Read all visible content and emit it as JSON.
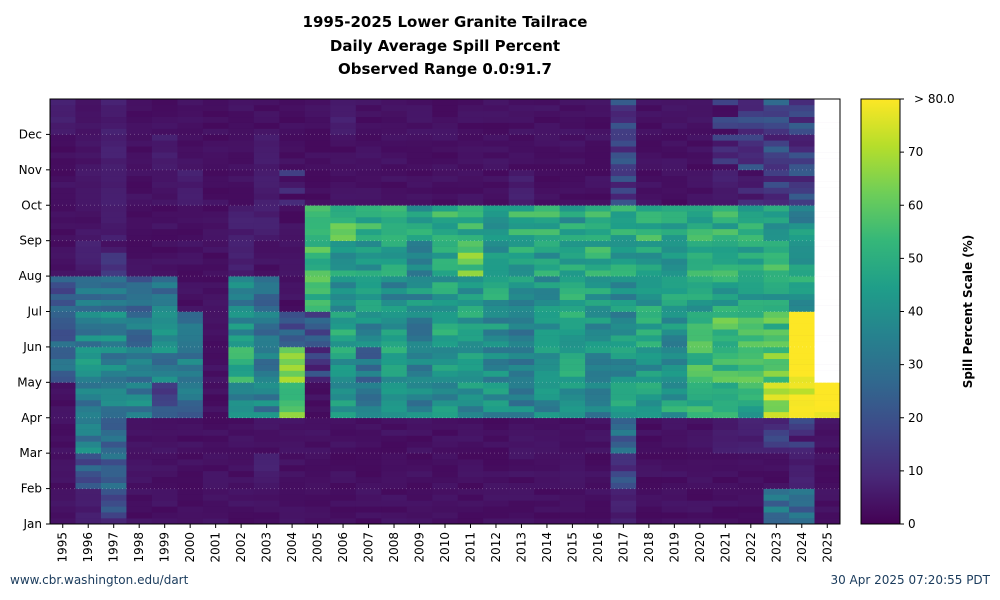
{
  "title_lines": [
    "1995-2025 Lower Granite Tailrace",
    "Daily Average Spill Percent",
    "Observed Range 0.0:91.7"
  ],
  "footer": {
    "left": "www.cbr.washington.edu/dart",
    "right": "30 Apr 2025 07:20:55 PDT"
  },
  "chart_data": {
    "type": "heatmap",
    "title": "1995-2025 Lower Granite Tailrace Daily Average Spill Percent",
    "subtitle": "Observed Range 0.0:91.7",
    "x_categories": [
      "1995",
      "1996",
      "1997",
      "1998",
      "1999",
      "2000",
      "2001",
      "2002",
      "2003",
      "2004",
      "2005",
      "2006",
      "2007",
      "2008",
      "2009",
      "2010",
      "2011",
      "2012",
      "2013",
      "2014",
      "2015",
      "2016",
      "2017",
      "2018",
      "2019",
      "2020",
      "2021",
      "2022",
      "2023",
      "2024",
      "2025"
    ],
    "y_tick_labels": [
      "Jan",
      "Feb",
      "Mar",
      "Apr",
      "May",
      "Jun",
      "Jul",
      "Aug",
      "Sep",
      "Oct",
      "Nov",
      "Dec"
    ],
    "colorbar": {
      "label": "Spill Percent Scale (%)",
      "ticks": [
        0,
        10,
        20,
        30,
        40,
        50,
        60,
        70
      ],
      "top_label": "> 80.0",
      "range": [
        0,
        80
      ]
    },
    "colormap": "viridis",
    "observed_range": [
      0.0,
      91.7
    ],
    "approx_avg_spill_by_year_month": {
      "1995": [
        2,
        2,
        2,
        2,
        25,
        25,
        20,
        2,
        2,
        2,
        2,
        5
      ],
      "1996": [
        5,
        20,
        35,
        30,
        40,
        35,
        30,
        5,
        3,
        3,
        3,
        3
      ],
      "1997": [
        15,
        25,
        30,
        35,
        35,
        35,
        30,
        10,
        5,
        5,
        5,
        5
      ],
      "1998": [
        2,
        2,
        2,
        35,
        30,
        30,
        25,
        2,
        2,
        2,
        2,
        2
      ],
      "1999": [
        2,
        2,
        2,
        20,
        35,
        35,
        30,
        2,
        2,
        2,
        5,
        2
      ],
      "2000": [
        2,
        2,
        2,
        30,
        35,
        35,
        2,
        2,
        2,
        5,
        2,
        2
      ],
      "2001": [
        2,
        2,
        2,
        2,
        2,
        2,
        2,
        2,
        2,
        2,
        2,
        2
      ],
      "2002": [
        2,
        2,
        2,
        40,
        50,
        40,
        35,
        5,
        5,
        2,
        2,
        2
      ],
      "2003": [
        2,
        5,
        2,
        35,
        30,
        30,
        25,
        2,
        5,
        5,
        5,
        2
      ],
      "2004": [
        2,
        2,
        2,
        60,
        65,
        20,
        2,
        2,
        2,
        10,
        2,
        2
      ],
      "2005": [
        2,
        2,
        2,
        2,
        15,
        20,
        55,
        55,
        50,
        2,
        2,
        2
      ],
      "2006": [
        2,
        2,
        2,
        40,
        45,
        45,
        40,
        45,
        55,
        2,
        2,
        5
      ],
      "2007": [
        2,
        2,
        2,
        35,
        30,
        35,
        40,
        45,
        50,
        2,
        2,
        2
      ],
      "2008": [
        2,
        2,
        2,
        40,
        45,
        45,
        40,
        45,
        50,
        2,
        2,
        2
      ],
      "2009": [
        2,
        2,
        2,
        35,
        35,
        35,
        40,
        40,
        45,
        2,
        2,
        2
      ],
      "2010": [
        2,
        2,
        2,
        40,
        40,
        45,
        45,
        45,
        50,
        2,
        2,
        2
      ],
      "2011": [
        2,
        2,
        2,
        40,
        45,
        45,
        45,
        60,
        50,
        2,
        2,
        2
      ],
      "2012": [
        2,
        2,
        2,
        40,
        40,
        40,
        45,
        45,
        45,
        2,
        2,
        2
      ],
      "2013": [
        2,
        2,
        2,
        35,
        35,
        35,
        40,
        45,
        50,
        5,
        2,
        2
      ],
      "2014": [
        2,
        2,
        2,
        40,
        40,
        40,
        40,
        45,
        50,
        2,
        2,
        2
      ],
      "2015": [
        2,
        2,
        2,
        40,
        45,
        50,
        50,
        45,
        45,
        2,
        2,
        2
      ],
      "2016": [
        2,
        2,
        2,
        35,
        40,
        40,
        45,
        50,
        50,
        2,
        2,
        2
      ],
      "2017": [
        5,
        15,
        25,
        45,
        40,
        40,
        40,
        45,
        50,
        15,
        15,
        15
      ],
      "2018": [
        2,
        2,
        2,
        45,
        40,
        45,
        45,
        45,
        50,
        2,
        2,
        2
      ],
      "2019": [
        2,
        2,
        2,
        45,
        40,
        40,
        45,
        45,
        50,
        2,
        2,
        2
      ],
      "2020": [
        2,
        2,
        2,
        50,
        55,
        55,
        45,
        50,
        50,
        2,
        2,
        2
      ],
      "2021": [
        2,
        2,
        5,
        50,
        55,
        55,
        45,
        50,
        50,
        5,
        10,
        10
      ],
      "2022": [
        2,
        2,
        5,
        50,
        55,
        55,
        45,
        50,
        50,
        10,
        15,
        15
      ],
      "2023": [
        30,
        2,
        10,
        70,
        60,
        55,
        45,
        50,
        45,
        15,
        15,
        20
      ],
      "2024": [
        30,
        5,
        10,
        75,
        85,
        85,
        45,
        45,
        40,
        15,
        15,
        15
      ],
      "2025": [
        2,
        2,
        2,
        85,
        null,
        null,
        null,
        null,
        null,
        null,
        null,
        null
      ]
    }
  }
}
